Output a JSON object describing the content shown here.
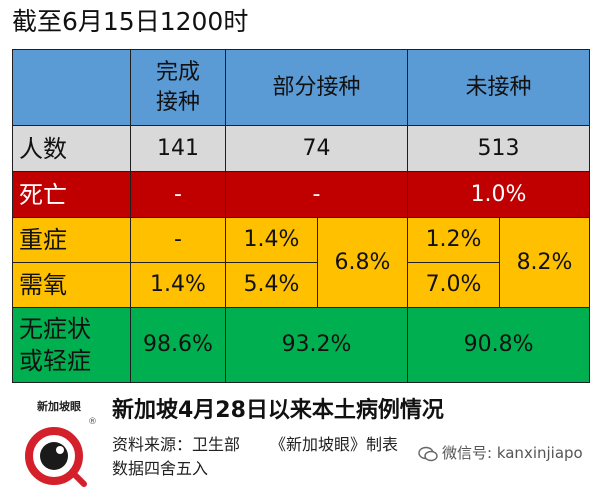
{
  "title": "截至6月15日1200时",
  "table": {
    "columns": [
      "完成接种",
      "部分接种",
      "未接种"
    ],
    "rows": {
      "count": {
        "label": "人数",
        "completed": "141",
        "partial": "74",
        "unvaccinated": "513"
      },
      "death": {
        "label": "死亡",
        "completed": "-",
        "partial": "-",
        "unvaccinated": "1.0%"
      },
      "severe": {
        "label": "重症",
        "completed": "-",
        "partial": "1.4%",
        "unvaccinated": "1.2%"
      },
      "oxygen": {
        "label": "需氧",
        "completed": "1.4%",
        "partial": "5.4%",
        "unvaccinated": "7.0%"
      },
      "partial_combined": "6.8%",
      "unvaccinated_combined": "8.2%",
      "mild": {
        "label": "无症状或轻症",
        "completed": "98.6%",
        "partial": "93.2%",
        "unvaccinated": "90.8%"
      }
    }
  },
  "footer": {
    "logo_text": "新加坡眼",
    "subtitle": "新加坡4月28日以来本土病例情况",
    "source_label": "资料来源：",
    "source_value": "卫生部",
    "producer": "《新加坡眼》制表",
    "rounding": "数据四舍五入",
    "wechat": "微信号: kanxinjiapo",
    "colors": {
      "logo_red": "#d3202a"
    }
  }
}
